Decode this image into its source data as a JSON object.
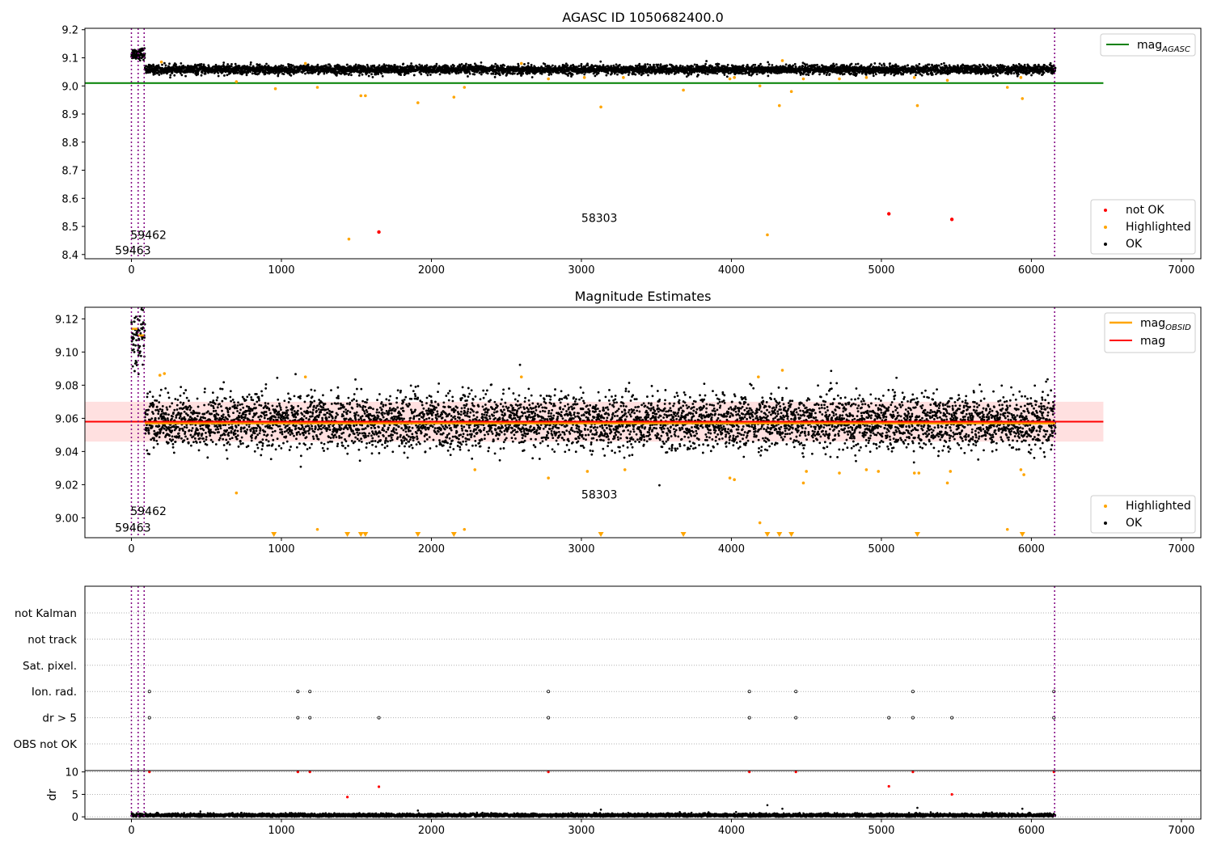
{
  "chart_data": [
    {
      "type": "scatter",
      "title": "AGASC ID 1050682400.0",
      "xlim": [
        -310,
        7130
      ],
      "ylim": [
        8.385,
        9.205
      ],
      "xticks": [
        0,
        1000,
        2000,
        3000,
        4000,
        5000,
        6000,
        7000
      ],
      "xtick_labels": [
        "0",
        "1000",
        "2000",
        "3000",
        "4000",
        "5000",
        "6000",
        "7000"
      ],
      "yticks": [
        8.4,
        8.5,
        8.6,
        8.7,
        8.8,
        8.9,
        9.0,
        9.1,
        9.2
      ],
      "ytick_labels": [
        "8.4",
        "8.5",
        "8.6",
        "8.7",
        "8.8",
        "8.9",
        "9.0",
        "9.1",
        "9.2"
      ],
      "vlines": [
        0,
        45,
        85,
        6155
      ],
      "reference_line": {
        "label": "mag",
        "label_sub": "AGASC",
        "value": 9.01,
        "x_range": [
          -310,
          6480
        ],
        "color": "#008000"
      },
      "annotations": [
        {
          "text": "59462",
          "x": 60,
          "y": 8.47
        },
        {
          "text": "59463",
          "x": 10,
          "y": 8.415
        },
        {
          "text": "58303",
          "x": 3120,
          "y": 8.53
        }
      ],
      "series": [
        {
          "name": "OK",
          "color": "#000000",
          "segments": [
            {
              "x": [
                0,
                90
              ],
              "mean": 9.115,
              "spread": 0.01
            },
            {
              "x": [
                90,
                6160
              ],
              "mean": 9.058,
              "spread": 0.008
            }
          ]
        },
        {
          "name": "Highlighted",
          "color": "#ffa500",
          "points": [
            [
              200,
              9.085
            ],
            [
              700,
              9.015
            ],
            [
              960,
              8.99
            ],
            [
              1160,
              9.08
            ],
            [
              1240,
              8.995
            ],
            [
              1450,
              8.455
            ],
            [
              1530,
              8.965
            ],
            [
              1560,
              8.965
            ],
            [
              1910,
              8.94
            ],
            [
              2150,
              8.96
            ],
            [
              2220,
              8.995
            ],
            [
              2600,
              9.08
            ],
            [
              2780,
              9.025
            ],
            [
              3020,
              9.03
            ],
            [
              3130,
              8.925
            ],
            [
              3280,
              9.03
            ],
            [
              3680,
              8.985
            ],
            [
              3990,
              9.025
            ],
            [
              4020,
              9.03
            ],
            [
              4190,
              9.0
            ],
            [
              4240,
              8.47
            ],
            [
              4320,
              8.93
            ],
            [
              4340,
              9.09
            ],
            [
              4400,
              8.98
            ],
            [
              4480,
              9.025
            ],
            [
              4720,
              9.025
            ],
            [
              4900,
              9.03
            ],
            [
              5220,
              9.03
            ],
            [
              5240,
              8.93
            ],
            [
              5440,
              9.02
            ],
            [
              5840,
              8.995
            ],
            [
              5930,
              9.03
            ],
            [
              5940,
              8.955
            ]
          ]
        },
        {
          "name": "not OK",
          "color": "#ff0000",
          "points": [
            [
              1650,
              8.48
            ],
            [
              5050,
              8.545
            ],
            [
              5470,
              8.525
            ]
          ]
        }
      ],
      "legends": [
        {
          "placement": "upper-right",
          "entries": [
            {
              "label": "mag",
              "sub": "AGASC",
              "marker": "line",
              "color": "#008000"
            }
          ]
        },
        {
          "placement": "lower-right",
          "entries": [
            {
              "label": "not OK",
              "marker": "dot",
              "color": "#ff0000"
            },
            {
              "label": "Highlighted",
              "marker": "dot",
              "color": "#ffa500"
            },
            {
              "label": "OK",
              "marker": "dot",
              "color": "#000000"
            }
          ]
        }
      ]
    },
    {
      "type": "scatter",
      "title": "Magnitude Estimates",
      "xlim": [
        -310,
        7130
      ],
      "ylim": [
        8.988,
        9.127
      ],
      "xticks": [
        0,
        1000,
        2000,
        3000,
        4000,
        5000,
        6000,
        7000
      ],
      "xtick_labels": [
        "0",
        "1000",
        "2000",
        "3000",
        "4000",
        "5000",
        "6000",
        "7000"
      ],
      "yticks": [
        9.0,
        9.02,
        9.04,
        9.06,
        9.08,
        9.1,
        9.12
      ],
      "ytick_labels": [
        "9.00",
        "9.02",
        "9.04",
        "9.06",
        "9.08",
        "9.10",
        "9.12"
      ],
      "vlines": [
        0,
        45,
        85,
        6155
      ],
      "mag_line": {
        "label": "mag",
        "value": 9.058,
        "x_range": [
          -310,
          6480
        ],
        "band": [
          9.046,
          9.07
        ],
        "color": "#ff0000"
      },
      "mag_obsid": {
        "label": "mag",
        "label_sub": "OBSID",
        "color": "#ffa500",
        "segments": [
          {
            "x": [
              0,
              40
            ],
            "y": 9.114
          },
          {
            "x": [
              45,
              85
            ],
            "y": 9.11
          },
          {
            "x": [
              90,
              6160
            ],
            "y": 9.057
          }
        ]
      },
      "annotations": [
        {
          "text": "59462",
          "x": 60,
          "y": 9.004
        },
        {
          "text": "59463",
          "x": 10,
          "y": 8.994
        },
        {
          "text": "58303",
          "x": 3120,
          "y": 9.014
        }
      ],
      "series": [
        {
          "name": "OK",
          "color": "#000000",
          "segments": [
            {
              "x": [
                0,
                90
              ],
              "mean": 9.11,
              "spread": 0.009
            },
            {
              "x": [
                90,
                6160
              ],
              "mean": 9.058,
              "spread": 0.008
            }
          ]
        },
        {
          "name": "Highlighted",
          "color": "#ffa500",
          "points": [
            [
              190,
              9.086
            ],
            [
              220,
              9.087
            ],
            [
              700,
              9.015
            ],
            [
              1160,
              9.085
            ],
            [
              1240,
              8.993
            ],
            [
              2220,
              8.993
            ],
            [
              2290,
              9.029
            ],
            [
              2600,
              9.085
            ],
            [
              2780,
              9.024
            ],
            [
              3040,
              9.028
            ],
            [
              3290,
              9.029
            ],
            [
              3990,
              9.024
            ],
            [
              4020,
              9.023
            ],
            [
              4190,
              8.997
            ],
            [
              4180,
              9.085
            ],
            [
              4340,
              9.089
            ],
            [
              4480,
              9.021
            ],
            [
              4500,
              9.028
            ],
            [
              4720,
              9.027
            ],
            [
              4900,
              9.029
            ],
            [
              4980,
              9.028
            ],
            [
              5220,
              9.027
            ],
            [
              5250,
              9.027
            ],
            [
              5440,
              9.021
            ],
            [
              5460,
              9.028
            ],
            [
              5840,
              8.993
            ],
            [
              5930,
              9.029
            ],
            [
              5950,
              9.026
            ]
          ]
        },
        {
          "name": "Highlighted below range",
          "color": "#ffa500",
          "points_x": [
            950,
            1440,
            1530,
            1560,
            1910,
            2150,
            3130,
            3680,
            4240,
            4320,
            4400,
            5240,
            5940
          ]
        }
      ],
      "legends": [
        {
          "placement": "upper-right",
          "entries": [
            {
              "label": "mag",
              "sub": "OBSID",
              "marker": "line",
              "color": "#ffa500"
            },
            {
              "label": "mag",
              "marker": "line",
              "color": "#ff0000"
            }
          ]
        },
        {
          "placement": "lower-right",
          "entries": [
            {
              "label": "Highlighted",
              "marker": "dot",
              "color": "#ffa500"
            },
            {
              "label": "OK",
              "marker": "dot",
              "color": "#000000"
            }
          ]
        }
      ]
    },
    {
      "type": "scatter",
      "title": "",
      "xlim": [
        -310,
        7130
      ],
      "categories": [
        "not Kalman",
        "not track",
        "Sat. pixel.",
        "Ion. rad.",
        "dr > 5",
        "OBS not OK"
      ],
      "vlines": [
        0,
        45,
        85,
        6155
      ],
      "series": [
        {
          "name": "Ion. rad.",
          "color": "#000000",
          "points_x": [
            120,
            1110,
            1190,
            2780,
            4120,
            4430,
            5210,
            6150
          ]
        },
        {
          "name": "dr > 5",
          "color": "#000000",
          "points_x": [
            120,
            1110,
            1190,
            1650,
            2780,
            4120,
            4430,
            5050,
            5210,
            5470,
            6150
          ]
        }
      ]
    },
    {
      "type": "scatter",
      "title": "",
      "ylabel": "dr",
      "xlim": [
        -310,
        7130
      ],
      "ylim": [
        -0.5,
        10.3
      ],
      "xticks": [
        0,
        1000,
        2000,
        3000,
        4000,
        5000,
        6000,
        7000
      ],
      "xtick_labels": [
        "0",
        "1000",
        "2000",
        "3000",
        "4000",
        "5000",
        "6000",
        "7000"
      ],
      "yticks": [
        0,
        5,
        10
      ],
      "ytick_labels": [
        "0",
        "5",
        "10"
      ],
      "vlines": [
        0,
        45,
        85,
        6155
      ],
      "series": [
        {
          "name": "OK",
          "color": "#000000",
          "segments": [
            {
              "x": [
                0,
                6160
              ],
              "mean": 0.35,
              "spread": 0.2
            }
          ]
        },
        {
          "name": "outliers",
          "color": "#000000",
          "points": [
            [
              1910,
              1.4
            ],
            [
              3130,
              1.6
            ],
            [
              4240,
              2.6
            ],
            [
              4340,
              1.8
            ],
            [
              5240,
              2.0
            ],
            [
              5940,
              1.8
            ]
          ]
        },
        {
          "name": "not OK",
          "color": "#ff0000",
          "points": [
            [
              120,
              10
            ],
            [
              1110,
              10
            ],
            [
              1190,
              10
            ],
            [
              1440,
              4.4
            ],
            [
              1650,
              6.7
            ],
            [
              2780,
              10
            ],
            [
              4120,
              10
            ],
            [
              4430,
              10
            ],
            [
              5050,
              6.8
            ],
            [
              5210,
              10
            ],
            [
              5470,
              5.0
            ],
            [
              6150,
              10
            ]
          ]
        }
      ]
    }
  ]
}
